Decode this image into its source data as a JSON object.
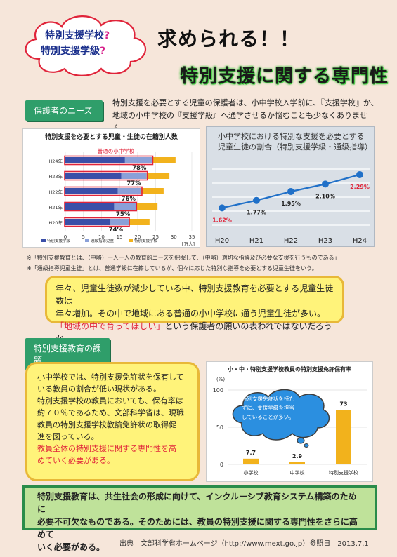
{
  "header": {
    "cloud_line1": "特別支援学校",
    "cloud_line2": "特別支援学級",
    "qmark": "?",
    "title1": "求められる！！",
    "title2": "特別支援に関する専門性"
  },
  "section1": {
    "label": "保護者のニーズ",
    "text_line1": "特別支援を必要とする児童の保護者は、小中学校入学前に、『支援学校』か、",
    "text_line2": "地域の小中学校の『支援学級』へ通学させるか悩むことも少なくありません。"
  },
  "chart1": {
    "title": "特別支援を必要とする児童・生徒の在籍別人数",
    "inner_label": "普通の小中学校",
    "unit": "[万人]",
    "legend": [
      "特別支援学級",
      "通級指導児童",
      "特別支援学校"
    ],
    "colors": {
      "class": "#3a4fa8",
      "tsukyu": "#8aa0d8",
      "school": "#f2b21c",
      "outline": "#e0243a"
    }
  },
  "chart2": {
    "title_line1": "小中学校における特別な支援を必要とする",
    "title_line2": "児童生徒の割合（特別支援学級・通級指導）"
  },
  "chart3": {
    "title": "小・中・特別支援学校教員の特別支援免許保有率",
    "yunit": "(%)",
    "cloud_text": [
      "特別支援免許状を持た",
      "ずに、支援学級を担当",
      "していることが多い。"
    ]
  },
  "chart_data": [
    {
      "type": "bar",
      "title": "特別支援を必要とする児童・生徒の在籍別人数",
      "categories": [
        "H24年",
        "H23年",
        "H22年",
        "H21年",
        "H20年"
      ],
      "series": [
        {
          "name": "特別支援学級",
          "values": [
            16.5,
            15.5,
            14.5,
            13.5,
            12.5
          ]
        },
        {
          "name": "通級指導児童",
          "values": [
            7.5,
            7,
            6.5,
            6,
            5
          ]
        },
        {
          "name": "特別支援学校",
          "values": [
            6.5,
            6.3,
            6.2,
            6,
            5.8
          ]
        }
      ],
      "percent_labels": [
        "78%",
        "77%",
        "76%",
        "75%",
        "74%"
      ],
      "xticks": [
        "0",
        "5",
        "10",
        "15",
        "20",
        "25",
        "30",
        "35"
      ],
      "xlim": [
        0,
        35
      ]
    },
    {
      "type": "line",
      "title": "小中学校における特別な支援を必要とする児童生徒の割合（特別支援学級・通級指導）",
      "categories": [
        "H20",
        "H21",
        "H22",
        "H23",
        "H24"
      ],
      "values": [
        1.62,
        1.77,
        1.95,
        2.1,
        2.29
      ],
      "labels": [
        "1.62%",
        "1.77%",
        "1.95%",
        "2.10%",
        "2.29%"
      ],
      "ylim": [
        1.3,
        2.6
      ]
    },
    {
      "type": "bar",
      "title": "小・中・特別支援学校教員の特別支援免許保有率",
      "categories": [
        "小学校",
        "中学校",
        "特別支援学校"
      ],
      "values": [
        7.7,
        2.9,
        73
      ],
      "labels": [
        "7.7",
        "2.9",
        "73"
      ],
      "yticks": [
        "0",
        "50",
        "100"
      ],
      "ylim": [
        0,
        100
      ]
    }
  ],
  "notes": [
    "※「特別支援教育とは、（中略）一人一人の教育的ニーズを把握して、（中略）適切な指導及び必要な支援を行うものである」",
    "※「通級指導児童生徒」とは、普通学級に在籍しているが、個々に応じた特別な指導を必要とする児童生徒をいう。"
  ],
  "ybox1": {
    "line1": "年々、児童生徒数が減少している中、特別支援教育を必要とする児童生徒数は",
    "line2": "年々増加。その中で地域にある普通の小中学校に通う児童生徒が多い。",
    "highlight": "「地域の中で育ってほしい」",
    "line3_rest": "という保護者の願いの表われではないだろうか。"
  },
  "section2": {
    "label": "特別支援教育の課題"
  },
  "ybox2": {
    "lines": [
      "小中学校では、特別支援免許状を保有して",
      "いる教員の割合が低い現状がある。",
      "特別支援学校の教員においても、保有率は",
      "約７０％であるため、文部科学省は、現職",
      "教員の特別支援学校教諭免許状の取得促",
      "進を図っている。"
    ],
    "red_lines": [
      "教員全体の特別支援に関する専門性を高",
      "めていく必要がある。"
    ]
  },
  "gbox": {
    "lines": [
      "特別支援教育は、共生社会の形成に向けて、インクルーシブ教育システム構築のために",
      "必要不可欠なものである。そのためには、教員の特別支援に関する専門性をさらに高めて",
      "いく必要がある。"
    ]
  },
  "source": "出典　文部科学省ホームページ（http://www.mext.go.jp）参照日　2013.7.1"
}
